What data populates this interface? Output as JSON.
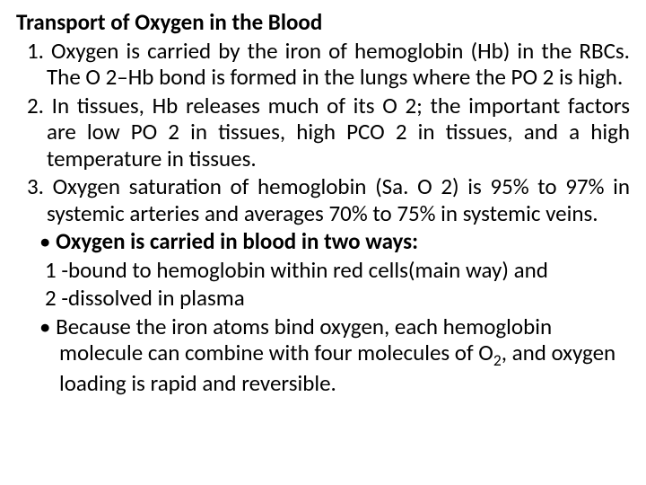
{
  "title": "Transport of Oxygen in the Blood",
  "item1": "1. Oxygen is carried by the iron of hemoglobin (Hb) in the RBCs. The O 2–Hb bond is formed in the lungs where the PO 2 is high.",
  "item2": "2. In tissues, Hb releases much of its O 2; the important factors are low PO 2 in tissues, high PCO 2 in tissues, and a high temperature in tissues.",
  "item3": "3. Oxygen saturation of hemoglobin (Sa. O 2) is 95% to 97% in systemic arteries and averages 70% to 75% in systemic veins.",
  "bullet1": "Oxygen is carried in blood in two ways:",
  "sub1": "1 -bound to hemoglobin within red cells(main way) and",
  "sub2": "2 -dissolved in plasma",
  "bullet2_pre": "Because the iron atoms bind oxygen, each hemoglobin molecule can combine with four molecules of O",
  "bullet2_sub": "2",
  "bullet2_post": ", and oxygen loading is rapid and reversible."
}
